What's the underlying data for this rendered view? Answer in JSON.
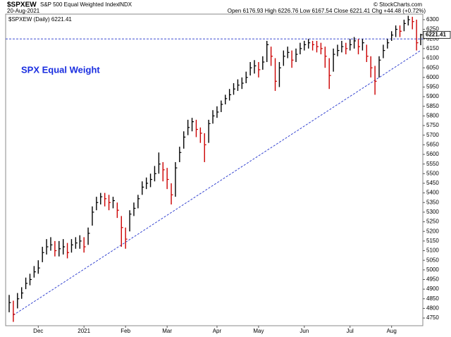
{
  "chart_data": {
    "type": "ohlc",
    "symbol": "$SPXEW",
    "name": "S&P 500 Equal Weighted Index",
    "exchange": "INDX",
    "date": "20-Aug-2021",
    "quote": {
      "open_label": "Open",
      "open": 6176.93,
      "high_label": "High",
      "high": 6226.76,
      "low_label": "Low",
      "low": 6167.54,
      "close_label": "Close",
      "close": 6221.41,
      "chg_label": "Chg",
      "chg": "+44.48 (+0.72%)"
    },
    "credit": "© StockCharts.com",
    "legend": "$SPXEW (Daily)",
    "annotation": "SPX Equal Weight",
    "up_color": "#000000",
    "down_color": "#cc0000",
    "categories": [
      null,
      null,
      null,
      null,
      null,
      null,
      null,
      "Dec",
      null,
      null,
      null,
      null,
      null,
      null,
      null,
      null,
      null,
      null,
      "2021",
      null,
      null,
      null,
      null,
      null,
      null,
      null,
      null,
      null,
      "Feb",
      null,
      null,
      null,
      null,
      null,
      null,
      null,
      null,
      null,
      "Mar",
      null,
      null,
      null,
      null,
      null,
      null,
      null,
      null,
      null,
      null,
      null,
      "Apr",
      null,
      null,
      null,
      null,
      null,
      null,
      null,
      null,
      null,
      "May",
      null,
      null,
      null,
      null,
      null,
      null,
      null,
      null,
      null,
      null,
      "Jun",
      null,
      null,
      null,
      null,
      null,
      null,
      null,
      null,
      null,
      null,
      "Jul",
      null,
      null,
      null,
      null,
      null,
      null,
      null,
      null,
      null,
      "Aug",
      null,
      null,
      null,
      null,
      null,
      null,
      null
    ],
    "high": [
      4870,
      4840,
      4880,
      4910,
      4960,
      4980,
      5020,
      5050,
      5120,
      5160,
      5170,
      5150,
      5150,
      5160,
      5140,
      5160,
      5170,
      5180,
      5170,
      5220,
      5330,
      5380,
      5400,
      5400,
      5390,
      5380,
      5350,
      5280,
      5220,
      5310,
      5350,
      5390,
      5460,
      5480,
      5500,
      5540,
      5610,
      5560,
      5530,
      5450,
      5560,
      5640,
      5720,
      5780,
      5790,
      5780,
      5740,
      5710,
      5780,
      5830,
      5850,
      5880,
      5910,
      5940,
      5970,
      5990,
      6000,
      6030,
      6080,
      6090,
      6080,
      6110,
      6190,
      6160,
      6100,
      6080,
      6140,
      6160,
      6140,
      6150,
      6180,
      6190,
      6200,
      6190,
      6190,
      6180,
      6160,
      6100,
      6150,
      6170,
      6190,
      6180,
      6200,
      6210,
      6200,
      6200,
      6170,
      6110,
      6060,
      6110,
      6170,
      6200,
      6240,
      6270,
      6270,
      6300,
      6320,
      6315,
      6300,
      6226.76
    ],
    "low": [
      4780,
      4730,
      4800,
      4850,
      4900,
      4920,
      4960,
      4980,
      5040,
      5080,
      5100,
      5070,
      5070,
      5080,
      5060,
      5090,
      5110,
      5110,
      5090,
      5130,
      5230,
      5310,
      5340,
      5330,
      5310,
      5320,
      5270,
      5120,
      5110,
      5200,
      5280,
      5320,
      5390,
      5420,
      5430,
      5460,
      5500,
      5460,
      5420,
      5340,
      5380,
      5560,
      5630,
      5700,
      5720,
      5690,
      5660,
      5560,
      5660,
      5760,
      5790,
      5820,
      5860,
      5880,
      5910,
      5930,
      5940,
      5970,
      6010,
      6020,
      6000,
      6040,
      6080,
      6060,
      5930,
      5950,
      6060,
      6100,
      6050,
      6080,
      6120,
      6140,
      6150,
      6140,
      6130,
      6120,
      6050,
      5940,
      6030,
      6110,
      6130,
      6120,
      6140,
      6150,
      6120,
      6140,
      6080,
      6000,
      5910,
      6000,
      6100,
      6150,
      6190,
      6210,
      6210,
      6240,
      6270,
      6250,
      6140,
      6167.54
    ],
    "close": [
      4830,
      4770,
      4850,
      4880,
      4930,
      4950,
      4990,
      5010,
      5090,
      5120,
      5130,
      5100,
      5110,
      5120,
      5090,
      5130,
      5140,
      5150,
      5120,
      5190,
      5300,
      5350,
      5380,
      5370,
      5350,
      5360,
      5310,
      5220,
      5160,
      5290,
      5320,
      5370,
      5430,
      5450,
      5470,
      5500,
      5550,
      5520,
      5470,
      5390,
      5530,
      5610,
      5690,
      5740,
      5770,
      5730,
      5710,
      5650,
      5760,
      5800,
      5820,
      5860,
      5890,
      5910,
      5940,
      5960,
      5970,
      6000,
      6050,
      6060,
      6040,
      6080,
      6170,
      6110,
      5980,
      6050,
      6110,
      6130,
      6090,
      6120,
      6150,
      6170,
      6180,
      6170,
      6160,
      6150,
      6110,
      6010,
      6120,
      6140,
      6160,
      6150,
      6170,
      6190,
      6160,
      6180,
      6110,
      6050,
      5980,
      6090,
      6140,
      6180,
      6220,
      6250,
      6240,
      6280,
      6300,
      6290,
      6180,
      6221.41
    ],
    "ylim": [
      4710,
      6329
    ],
    "yticks": [
      4750,
      4800,
      4850,
      4900,
      4950,
      5000,
      5050,
      5100,
      5150,
      5200,
      5250,
      5300,
      5350,
      5400,
      5450,
      5500,
      5550,
      5600,
      5650,
      5700,
      5750,
      5800,
      5850,
      5900,
      5950,
      6000,
      6050,
      6100,
      6150,
      6200,
      6250,
      6300
    ],
    "hline": {
      "value": 6200,
      "color": "#2233cc"
    },
    "trendline": {
      "x": [
        1,
        99
      ],
      "values": [
        4765,
        6140
      ],
      "color": "#2233cc"
    }
  }
}
